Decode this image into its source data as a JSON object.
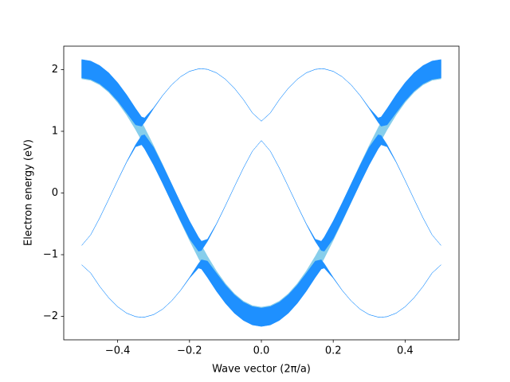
{
  "chart_data": {
    "type": "fill_between",
    "xlabel": "Wave vector (2π/a)",
    "ylabel": "Electron energy (eV)",
    "xlim": [
      -0.55,
      0.55
    ],
    "ylim": [
      -2.38,
      2.38
    ],
    "xticks": [
      {
        "value": -0.4,
        "label": "−0.4"
      },
      {
        "value": -0.2,
        "label": "−0.2"
      },
      {
        "value": 0,
        "label": "0.0"
      },
      0.2,
      0.4
    ],
    "yticks": [
      {
        "value": -2,
        "label": "−2"
      },
      {
        "value": -1,
        "label": "−1"
      },
      0,
      1,
      2
    ],
    "x": [
      -0.5,
      -0.475,
      -0.45,
      -0.425,
      -0.4,
      -0.375,
      -0.35,
      -0.3333,
      -0.325,
      -0.3,
      -0.275,
      -0.25,
      -0.225,
      -0.2,
      -0.175,
      -0.1667,
      -0.15,
      -0.125,
      -0.1,
      -0.075,
      -0.05,
      -0.025,
      0,
      0.025,
      0.05,
      0.075,
      0.1,
      0.125,
      0.15,
      0.1667,
      0.175,
      0.2,
      0.225,
      0.25,
      0.275,
      0.3,
      0.325,
      0.3333,
      0.35,
      0.375,
      0.4,
      0.425,
      0.45,
      0.475,
      0.5
    ],
    "series": [
      {
        "color": "#87ceeb",
        "values": [
          2,
          1.975,
          1.902,
          1.782,
          1.618,
          1.414,
          1.176,
          1.0,
          0.908,
          0.618,
          0.313,
          0,
          -0.313,
          -0.618,
          -0.908,
          -1.0,
          -1.176,
          -1.414,
          -1.618,
          -1.782,
          -1.902,
          -1.975,
          -2,
          -1.975,
          -1.902,
          -1.782,
          -1.618,
          -1.414,
          -1.176,
          -1.0,
          -0.908,
          -0.618,
          -0.313,
          0,
          0.313,
          0.618,
          0.908,
          1.0,
          1.176,
          1.414,
          1.618,
          1.782,
          1.902,
          1.975,
          2
        ],
        "widths": [
          0.15,
          0.15,
          0.15,
          0.15,
          0.15,
          0.15,
          0.15,
          0.15,
          0.15,
          0.15,
          0.15,
          0.15,
          0.15,
          0.15,
          0.15,
          0.15,
          0.15,
          0.15,
          0.15,
          0.15,
          0.15,
          0.15,
          0.15,
          0.15,
          0.15,
          0.15,
          0.15,
          0.15,
          0.15,
          0.15,
          0.15,
          0.15,
          0.15,
          0.15,
          0.15,
          0.15,
          0.15,
          0.15,
          0.15,
          0.15,
          0.15,
          0.15,
          0.15,
          0.15,
          0.15
        ]
      },
      {
        "color": "#1e90ff",
        "values": [
          -1.164,
          -1.298,
          -1.514,
          -1.698,
          -1.844,
          -1.948,
          -2.004,
          -2.015,
          -2.012,
          -1.972,
          -1.884,
          -1.751,
          -1.579,
          -1.375,
          -1.181,
          -1.157,
          -1.237,
          -1.446,
          -1.64,
          -1.8,
          -1.918,
          -1.99,
          -2.014,
          -1.99,
          -1.918,
          -1.8,
          -1.64,
          -1.446,
          -1.237,
          -1.157,
          -1.181,
          -1.375,
          -1.579,
          -1.751,
          -1.884,
          -1.972,
          -2.012,
          -2.015,
          -2.004,
          -1.948,
          -1.844,
          -1.698,
          -1.514,
          -1.298,
          -1.164
        ],
        "widths": [
          0.001,
          0.001,
          0.001,
          0.001,
          0.001,
          0.001,
          0.001,
          0.001,
          0.001,
          0.001,
          0.001,
          0.001,
          0.002,
          0.006,
          0.036,
          0.075,
          0.133,
          0.146,
          0.148,
          0.149,
          0.148,
          0.149,
          0.149,
          0.149,
          0.148,
          0.149,
          0.148,
          0.146,
          0.133,
          0.075,
          0.036,
          0.006,
          0.002,
          0.001,
          0.001,
          0.001,
          0.001,
          0.001,
          0.001,
          0.001,
          0.001,
          0.001,
          0.001,
          0.001,
          0.001
        ]
      },
      {
        "color": "#1e90ff",
        "values": [
          -0.85,
          -0.678,
          -0.405,
          -0.103,
          0.204,
          0.502,
          0.766,
          0.857,
          0.83,
          0.597,
          0.305,
          0,
          -0.305,
          -0.597,
          -0.83,
          -0.857,
          -0.766,
          -0.502,
          -0.204,
          0.103,
          0.405,
          0.678,
          0.85,
          0.678,
          0.405,
          0.103,
          -0.204,
          -0.502,
          -0.766,
          -0.857,
          -0.83,
          -0.597,
          -0.305,
          0,
          0.305,
          0.597,
          0.83,
          0.857,
          0.766,
          0.502,
          0.204,
          -0.103,
          -0.405,
          -0.678,
          -0.85
        ],
        "widths": [
          0,
          0,
          0.001,
          0.001,
          0.002,
          0.004,
          0.017,
          0.075,
          0.114,
          0.144,
          0.147,
          0.148,
          0.147,
          0.144,
          0.114,
          0.075,
          0.017,
          0.004,
          0.002,
          0.001,
          0.001,
          0,
          0,
          0,
          0.001,
          0.001,
          0.002,
          0.004,
          0.017,
          0.075,
          0.114,
          0.144,
          0.147,
          0.148,
          0.147,
          0.144,
          0.114,
          0.075,
          0.017,
          0.004,
          0.002,
          0.001,
          0.001,
          0,
          0
        ]
      },
      {
        "color": "#1e90ff",
        "values": [
          2.014,
          1.99,
          1.918,
          1.8,
          1.64,
          1.446,
          1.237,
          1.157,
          1.181,
          1.375,
          1.579,
          1.751,
          1.884,
          1.972,
          2.012,
          2.015,
          2.004,
          1.948,
          1.844,
          1.698,
          1.514,
          1.298,
          1.164,
          1.298,
          1.514,
          1.698,
          1.844,
          1.948,
          2.004,
          2.015,
          2.012,
          1.972,
          1.884,
          1.751,
          1.579,
          1.375,
          1.181,
          1.157,
          1.237,
          1.446,
          1.64,
          1.8,
          1.918,
          1.99,
          2.014
        ],
        "widths": [
          0.149,
          0.149,
          0.148,
          0.149,
          0.148,
          0.146,
          0.133,
          0.075,
          0.036,
          0.006,
          0.002,
          0.001,
          0.001,
          0.001,
          0.001,
          0.001,
          0.001,
          0.001,
          0.001,
          0.001,
          0.001,
          0.001,
          0.001,
          0.001,
          0.001,
          0.001,
          0.001,
          0.001,
          0.001,
          0.001,
          0.001,
          0.001,
          0.001,
          0.001,
          0.002,
          0.006,
          0.036,
          0.075,
          0.133,
          0.146,
          0.148,
          0.149,
          0.148,
          0.149,
          0.149
        ]
      }
    ]
  }
}
